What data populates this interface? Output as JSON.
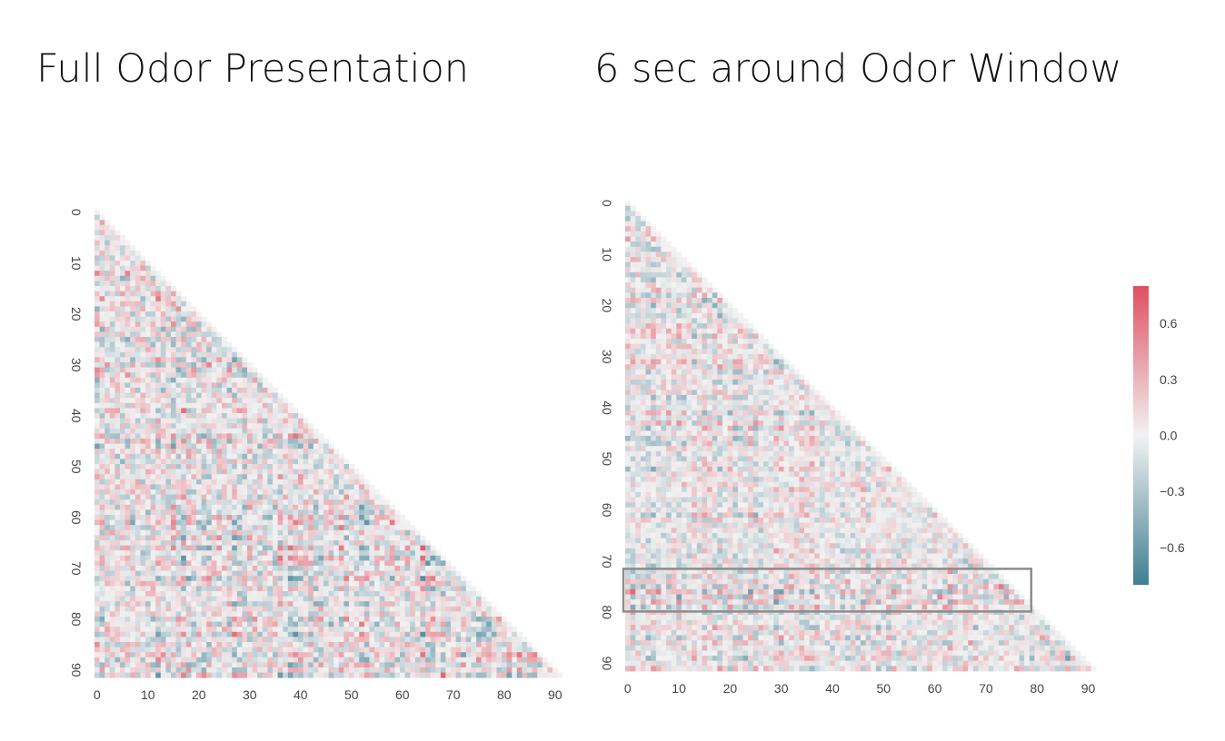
{
  "figure": {
    "left_title": "Full Odor Presentation",
    "right_title": "6 sec around Odor Window"
  },
  "colorscale": {
    "low_color": "#3f7f93",
    "mid_color": "#f2f2f2",
    "high_color": "#e05060",
    "highlight_box_color": "#8c8c8c"
  },
  "chart_data": [
    {
      "type": "heatmap",
      "title": "Full Odor Presentation",
      "description": "Lower-triangular correlation matrix, 92 x 92",
      "n": 92,
      "xlim": [
        0,
        92
      ],
      "ylim": [
        0,
        92
      ],
      "xticks": [
        0,
        10,
        20,
        30,
        40,
        50,
        60,
        70,
        80,
        90
      ],
      "yticks": [
        0,
        10,
        20,
        30,
        40,
        50,
        60,
        70,
        80,
        90
      ],
      "xticklabels": [
        "0",
        "10",
        "20",
        "30",
        "40",
        "50",
        "60",
        "70",
        "80",
        "90"
      ],
      "yticklabels": [
        "0",
        "10",
        "20",
        "30",
        "40",
        "50",
        "60",
        "70",
        "80",
        "90"
      ],
      "vmin": -0.8,
      "vmax": 0.8,
      "colorbar": false
    },
    {
      "type": "heatmap",
      "title": "6 sec around Odor Window",
      "description": "Lower-triangular correlation matrix, 92 x 92",
      "n": 92,
      "xlim": [
        0,
        92
      ],
      "ylim": [
        0,
        92
      ],
      "xticks": [
        0,
        10,
        20,
        30,
        40,
        50,
        60,
        70,
        80,
        90
      ],
      "yticks": [
        0,
        10,
        20,
        30,
        40,
        50,
        60,
        70,
        80,
        90
      ],
      "xticklabels": [
        "0",
        "10",
        "20",
        "30",
        "40",
        "50",
        "60",
        "70",
        "80",
        "90"
      ],
      "yticklabels": [
        "0",
        "10",
        "20",
        "30",
        "40",
        "50",
        "60",
        "70",
        "80",
        "90"
      ],
      "vmin": -0.8,
      "vmax": 0.8,
      "colorbar": true,
      "colorbar_ticks": [
        0.6,
        0.3,
        0.0,
        -0.3,
        -0.6
      ],
      "colorbar_ticklabels": [
        "0.6",
        "0.3",
        "0.0",
        "−0.3",
        "−0.6"
      ],
      "highlight_rows": [
        72,
        80
      ],
      "highlight_cols": [
        0,
        79
      ]
    }
  ]
}
